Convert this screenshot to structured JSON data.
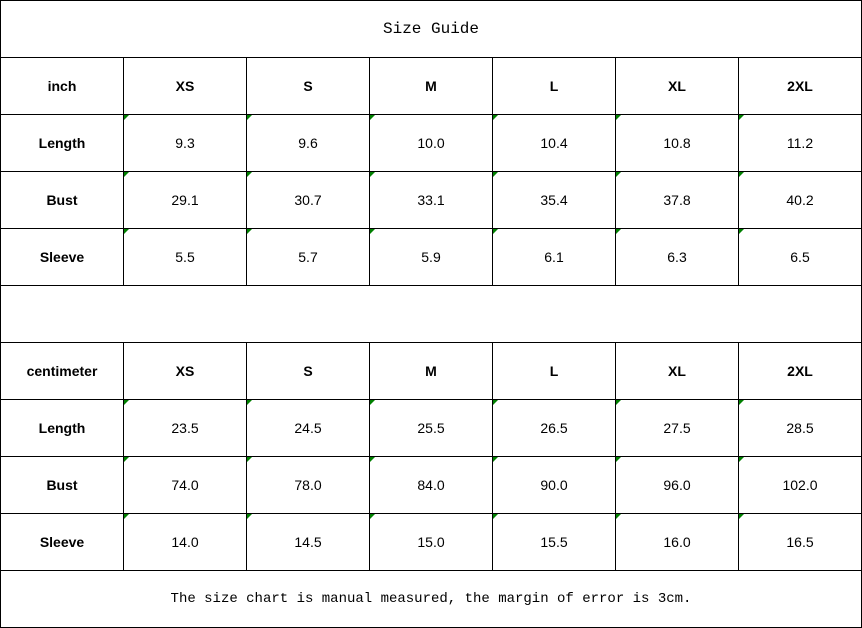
{
  "title": "Size Guide",
  "tables": [
    {
      "unit": "inch",
      "sizes": [
        "XS",
        "S",
        "M",
        "L",
        "XL",
        "2XL"
      ],
      "rows": [
        {
          "label": "Length",
          "values": [
            "9.3",
            "9.6",
            "10.0",
            "10.4",
            "10.8",
            "11.2"
          ]
        },
        {
          "label": "Bust",
          "values": [
            "29.1",
            "30.7",
            "33.1",
            "35.4",
            "37.8",
            "40.2"
          ]
        },
        {
          "label": "Sleeve",
          "values": [
            "5.5",
            "5.7",
            "5.9",
            "6.1",
            "6.3",
            "6.5"
          ]
        }
      ]
    },
    {
      "unit": "centimeter",
      "sizes": [
        "XS",
        "S",
        "M",
        "L",
        "XL",
        "2XL"
      ],
      "rows": [
        {
          "label": "Length",
          "values": [
            "23.5",
            "24.5",
            "25.5",
            "26.5",
            "27.5",
            "28.5"
          ]
        },
        {
          "label": "Bust",
          "values": [
            "74.0",
            "78.0",
            "84.0",
            "90.0",
            "96.0",
            "102.0"
          ]
        },
        {
          "label": "Sleeve",
          "values": [
            "14.0",
            "14.5",
            "15.0",
            "15.5",
            "16.0",
            "16.5"
          ]
        }
      ]
    }
  ],
  "footer": "The size chart is manual measured, the margin of error is 3cm.",
  "colors": {
    "cell_marker": "#008000",
    "border": "#000000"
  }
}
